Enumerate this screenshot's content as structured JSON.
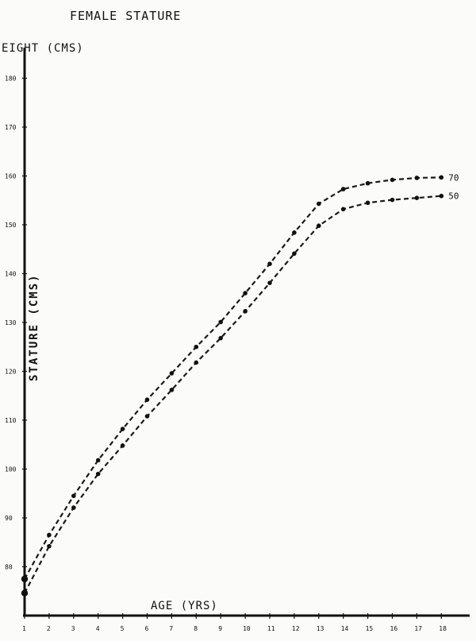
{
  "chart_data": {
    "type": "line",
    "title": "FEMALE STATURE",
    "y_top_label": "EIGHT (CMS)",
    "ylabel": "STATURE (CMS)",
    "xlabel": "AGE (YRS)",
    "x_ticks": [
      "1",
      "2",
      "3",
      "4",
      "5",
      "6",
      "7",
      "8",
      "9",
      "10",
      "11",
      "12",
      "13",
      "14",
      "15",
      "16",
      "17",
      "18"
    ],
    "y_ticks": [
      {
        "value": 80,
        "label": "80"
      },
      {
        "value": 90,
        "label": "90"
      },
      {
        "value": 100,
        "label": "100"
      },
      {
        "value": 110,
        "label": "110"
      },
      {
        "value": 120,
        "label": "120"
      },
      {
        "value": 130,
        "label": "130"
      },
      {
        "value": 140,
        "label": "140"
      },
      {
        "value": 150,
        "label": "150"
      },
      {
        "value": 160,
        "label": "160"
      },
      {
        "value": 170,
        "label": "170"
      },
      {
        "value": 180,
        "label": "180"
      }
    ],
    "ylim": [
      70,
      182
    ],
    "grid": false,
    "series": [
      {
        "name": "70",
        "x": [
          1,
          2,
          3,
          4,
          5,
          6,
          7,
          8,
          9,
          10,
          11,
          12,
          13,
          14,
          15,
          16,
          17,
          18
        ],
        "values": [
          77.5,
          86.5,
          94.5,
          101.8,
          108.2,
          114.2,
          119.6,
          125.0,
          130.1,
          136.0,
          142.0,
          148.4,
          154.3,
          157.3,
          158.5,
          159.2,
          159.6,
          159.7
        ]
      },
      {
        "name": "50",
        "x": [
          1,
          2,
          3,
          4,
          5,
          6,
          7,
          8,
          9,
          10,
          11,
          12,
          13,
          14,
          15,
          16,
          17,
          18
        ],
        "values": [
          74.6,
          84.2,
          92.1,
          99.0,
          104.8,
          110.8,
          116.2,
          121.8,
          126.8,
          132.3,
          138.1,
          144.1,
          149.8,
          153.2,
          154.5,
          155.1,
          155.5,
          155.9
        ]
      }
    ],
    "colors": {
      "ink": "#111111",
      "paper": "#fbfbf9"
    }
  }
}
